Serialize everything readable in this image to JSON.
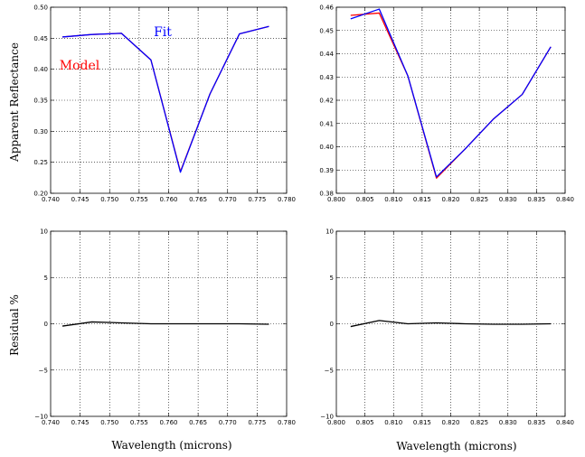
{
  "chart_data": [
    {
      "type": "line",
      "panel": "top-left",
      "xlim": [
        0.74,
        0.78
      ],
      "ylim": [
        0.2,
        0.5
      ],
      "xticks": [
        "0.740",
        "0.745",
        "0.750",
        "0.755",
        "0.760",
        "0.765",
        "0.770",
        "0.775",
        "0.780"
      ],
      "yticks": [
        "0.20",
        "0.25",
        "0.30",
        "0.35",
        "0.40",
        "0.45",
        "0.50"
      ],
      "ylabel": "Apparent Reflectance",
      "xlabel": "",
      "grid": true,
      "annotations": [
        {
          "text": "Fit",
          "color": "#0000ff"
        },
        {
          "text": "Model",
          "color": "#ff0000"
        }
      ],
      "series": [
        {
          "color": "#ff0000",
          "x": [
            0.742,
            0.747,
            0.752,
            0.757,
            0.762,
            0.767,
            0.772,
            0.777
          ],
          "y": [
            0.452,
            0.456,
            0.458,
            0.415,
            0.235,
            0.36,
            0.457,
            0.469
          ]
        },
        {
          "color": "#0000ff",
          "x": [
            0.742,
            0.747,
            0.752,
            0.757,
            0.762,
            0.767,
            0.772,
            0.777
          ],
          "y": [
            0.452,
            0.456,
            0.458,
            0.415,
            0.234,
            0.36,
            0.457,
            0.469
          ]
        }
      ]
    },
    {
      "type": "line",
      "panel": "top-right",
      "xlim": [
        0.8,
        0.84
      ],
      "ylim": [
        0.38,
        0.46
      ],
      "xticks": [
        "0.800",
        "0.805",
        "0.810",
        "0.815",
        "0.820",
        "0.825",
        "0.830",
        "0.835",
        "0.840"
      ],
      "yticks": [
        "0.38",
        "0.39",
        "0.40",
        "0.41",
        "0.42",
        "0.43",
        "0.44",
        "0.45",
        "0.46"
      ],
      "ylabel": "",
      "xlabel": "",
      "grid": true,
      "series": [
        {
          "color": "#ff0000",
          "x": [
            0.8025,
            0.8075,
            0.8125,
            0.8175,
            0.8225,
            0.8275,
            0.8325,
            0.8375
          ],
          "y": [
            0.4565,
            0.4575,
            0.4305,
            0.3865,
            0.399,
            0.412,
            0.4225,
            0.443
          ]
        },
        {
          "color": "#0000ff",
          "x": [
            0.8025,
            0.8075,
            0.8125,
            0.8175,
            0.8225,
            0.8275,
            0.8325,
            0.8375
          ],
          "y": [
            0.455,
            0.4592,
            0.4305,
            0.387,
            0.399,
            0.412,
            0.4225,
            0.443
          ]
        }
      ]
    },
    {
      "type": "line",
      "panel": "bottom-left",
      "xlim": [
        0.74,
        0.78
      ],
      "ylim": [
        -10,
        10
      ],
      "xticks": [
        "0.740",
        "0.745",
        "0.750",
        "0.755",
        "0.760",
        "0.765",
        "0.770",
        "0.775",
        "0.780"
      ],
      "yticks": [
        "−10",
        "−5",
        "0",
        "5",
        "10"
      ],
      "ylabel": "Residual %",
      "xlabel": "Wavelength (microns)",
      "grid": true,
      "series": [
        {
          "color": "#000000",
          "x": [
            0.742,
            0.747,
            0.752,
            0.757,
            0.762,
            0.767,
            0.772,
            0.777
          ],
          "y": [
            -0.25,
            0.2,
            0.1,
            0.0,
            0.0,
            0.0,
            0.0,
            -0.05
          ]
        }
      ]
    },
    {
      "type": "line",
      "panel": "bottom-right",
      "xlim": [
        0.8,
        0.84
      ],
      "ylim": [
        -10,
        10
      ],
      "xticks": [
        "0.800",
        "0.805",
        "0.810",
        "0.815",
        "0.820",
        "0.825",
        "0.830",
        "0.835",
        "0.840"
      ],
      "yticks": [
        "−10",
        "−5",
        "0",
        "5",
        "10"
      ],
      "ylabel": "",
      "xlabel": "Wavelength (microns)",
      "grid": true,
      "series": [
        {
          "color": "#000000",
          "x": [
            0.8025,
            0.8075,
            0.8125,
            0.8175,
            0.8225,
            0.8275,
            0.8325,
            0.8375
          ],
          "y": [
            -0.3,
            0.35,
            0.0,
            0.1,
            0.0,
            -0.05,
            -0.05,
            0.0
          ]
        }
      ]
    }
  ]
}
